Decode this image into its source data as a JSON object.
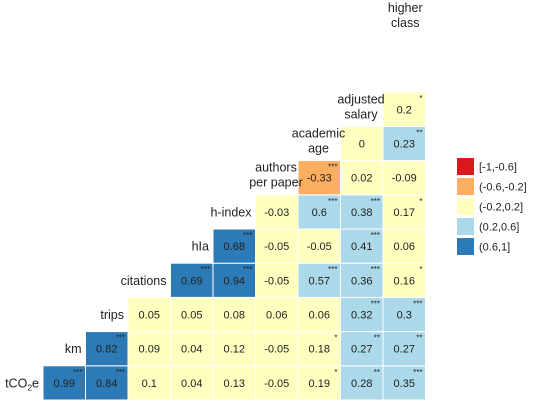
{
  "chart_data": {
    "type": "heatmap",
    "title": "",
    "variables": [
      "tCO2e",
      "km",
      "trips",
      "citations",
      "hIa",
      "h-index",
      "authors per paper",
      "academic age",
      "adjusted salary",
      "higher class"
    ],
    "variable_labels": [
      [
        "tCO",
        "2",
        "e"
      ],
      [
        "km"
      ],
      [
        "trips"
      ],
      [
        "citations"
      ],
      [
        "hIa"
      ],
      [
        "h-index"
      ],
      [
        "authors",
        "per paper"
      ],
      [
        "academic",
        "age"
      ],
      [
        "adjusted",
        "salary"
      ],
      [
        "higher",
        "class"
      ]
    ],
    "columns": [
      "km",
      "trips",
      "citations",
      "hIa",
      "h-index",
      "authors per paper",
      "academic age",
      "adjusted salary",
      "higher class"
    ],
    "rows": [
      {
        "row": "tCO2e",
        "cells": [
          {
            "label": "0.99",
            "value": 0.99,
            "sig": "***"
          },
          {
            "label": "0.84",
            "value": 0.84,
            "sig": "***"
          },
          {
            "label": "0.1",
            "value": 0.1,
            "sig": ""
          },
          {
            "label": "0.04",
            "value": 0.04,
            "sig": ""
          },
          {
            "label": "0.13",
            "value": 0.13,
            "sig": ""
          },
          {
            "label": "-0.05",
            "value": -0.05,
            "sig": ""
          },
          {
            "label": "0.19",
            "value": 0.19,
            "sig": "*"
          },
          {
            "label": "0.28",
            "value": 0.28,
            "sig": "**"
          },
          {
            "label": "0.35",
            "value": 0.35,
            "sig": "***"
          }
        ]
      },
      {
        "row": "km",
        "cells": [
          {
            "label": "0.82",
            "value": 0.82,
            "sig": "***"
          },
          {
            "label": "0.09",
            "value": 0.09,
            "sig": ""
          },
          {
            "label": "0.04",
            "value": 0.04,
            "sig": ""
          },
          {
            "label": "0.12",
            "value": 0.12,
            "sig": ""
          },
          {
            "label": "-0.05",
            "value": -0.05,
            "sig": ""
          },
          {
            "label": "0.18",
            "value": 0.18,
            "sig": "*"
          },
          {
            "label": "0.27",
            "value": 0.27,
            "sig": "**"
          },
          {
            "label": "0.27",
            "value": 0.27,
            "sig": "**"
          }
        ]
      },
      {
        "row": "trips",
        "cells": [
          {
            "label": "0.05",
            "value": 0.05,
            "sig": ""
          },
          {
            "label": "0.05",
            "value": 0.05,
            "sig": ""
          },
          {
            "label": "0.08",
            "value": 0.08,
            "sig": ""
          },
          {
            "label": "0.06",
            "value": 0.06,
            "sig": ""
          },
          {
            "label": "0.06",
            "value": 0.06,
            "sig": ""
          },
          {
            "label": "0.32",
            "value": 0.32,
            "sig": "***"
          },
          {
            "label": "0.3",
            "value": 0.3,
            "sig": "***"
          }
        ]
      },
      {
        "row": "citations",
        "cells": [
          {
            "label": "0.69",
            "value": 0.69,
            "sig": "***"
          },
          {
            "label": "0.94",
            "value": 0.94,
            "sig": "***"
          },
          {
            "label": "-0.05",
            "value": -0.05,
            "sig": ""
          },
          {
            "label": "0.57",
            "value": 0.57,
            "sig": "***"
          },
          {
            "label": "0.36",
            "value": 0.36,
            "sig": "***"
          },
          {
            "label": "0.16",
            "value": 0.16,
            "sig": "*"
          }
        ]
      },
      {
        "row": "hIa",
        "cells": [
          {
            "label": "0.68",
            "value": 0.68,
            "sig": "***"
          },
          {
            "label": "-0.05",
            "value": -0.05,
            "sig": ""
          },
          {
            "label": "-0.05",
            "value": -0.05,
            "sig": ""
          },
          {
            "label": "0.41",
            "value": 0.41,
            "sig": "***"
          },
          {
            "label": "0.06",
            "value": 0.06,
            "sig": ""
          }
        ]
      },
      {
        "row": "h-index",
        "cells": [
          {
            "label": "-0.03",
            "value": -0.03,
            "sig": ""
          },
          {
            "label": "0.6",
            "value": 0.6,
            "sig": "***"
          },
          {
            "label": "0.38",
            "value": 0.38,
            "sig": "***"
          },
          {
            "label": "0.17",
            "value": 0.17,
            "sig": "*"
          }
        ]
      },
      {
        "row": "authors per paper",
        "cells": [
          {
            "label": "-0.33",
            "value": -0.33,
            "sig": "***"
          },
          {
            "label": "0.02",
            "value": 0.02,
            "sig": ""
          },
          {
            "label": "-0.09",
            "value": -0.09,
            "sig": ""
          }
        ]
      },
      {
        "row": "academic age",
        "cells": [
          {
            "label": "0",
            "value": 0,
            "sig": ""
          },
          {
            "label": "0.23",
            "value": 0.23,
            "sig": "**"
          }
        ]
      },
      {
        "row": "adjusted salary",
        "cells": [
          {
            "label": "0.2",
            "value": 0.2,
            "sig": "*"
          }
        ]
      },
      {
        "row": "higher class",
        "cells": []
      }
    ],
    "legend": {
      "placement": "right",
      "bins": [
        {
          "label": "[-1,-0.6]",
          "color": "#d7191c"
        },
        {
          "label": "(-0.6,-0.2]",
          "color": "#fdae61"
        },
        {
          "label": "(-0.2,0.2]",
          "color": "#ffffbf"
        },
        {
          "label": "(0.2,0.6]",
          "color": "#abd9e9"
        },
        {
          "label": "(0.6,1]",
          "color": "#2c7bb6"
        }
      ]
    }
  }
}
